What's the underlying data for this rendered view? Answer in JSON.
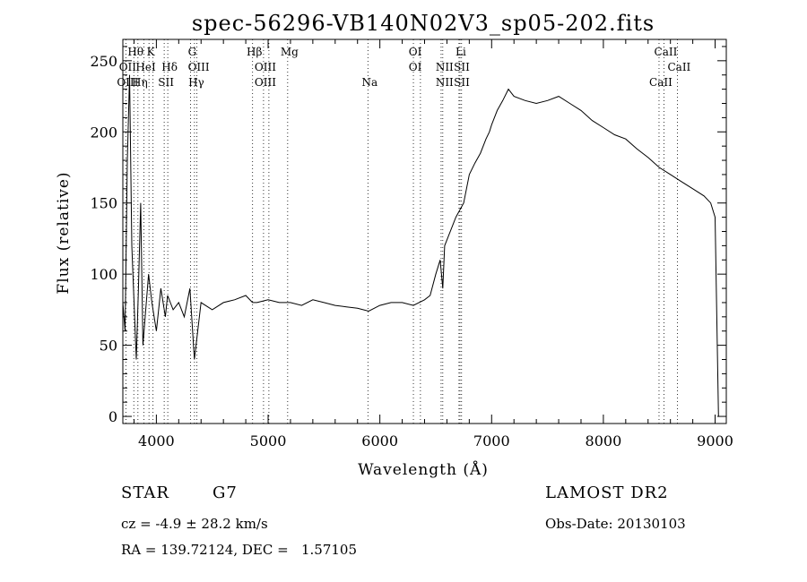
{
  "chart_data": {
    "type": "line",
    "title": "spec-56296-VB140N02V3_sp05-202.fits",
    "xlabel": "Wavelength (Å)",
    "ylabel": "Flux (relative)",
    "xlim": [
      3700,
      9100
    ],
    "ylim": [
      -5,
      265
    ],
    "xticks": [
      4000,
      5000,
      6000,
      7000,
      8000,
      9000
    ],
    "yticks": [
      0,
      50,
      100,
      150,
      200,
      250
    ],
    "grid": false,
    "series": [
      {
        "x": [
          3700,
          3720,
          3740,
          3760,
          3780,
          3800,
          3820,
          3840,
          3860,
          3880,
          3900,
          3930,
          3960,
          4000,
          4040,
          4080,
          4100,
          4150,
          4200,
          4250,
          4300,
          4340,
          4400,
          4500,
          4600,
          4700,
          4800,
          4860,
          4900,
          5000,
          5100,
          5200,
          5300,
          5400,
          5500,
          5600,
          5700,
          5800,
          5900,
          6000,
          6100,
          6200,
          6300,
          6400,
          6450,
          6500,
          6540,
          6563,
          6580,
          6620,
          6680,
          6750,
          6800,
          6850,
          6900,
          6950,
          6980,
          7000,
          7050,
          7100,
          7150,
          7200,
          7300,
          7400,
          7500,
          7600,
          7700,
          7800,
          7900,
          8000,
          8100,
          8200,
          8300,
          8400,
          8500,
          8600,
          8700,
          8800,
          8900,
          8960,
          9000,
          9030
        ],
        "y": [
          80,
          60,
          180,
          240,
          120,
          80,
          40,
          90,
          150,
          50,
          70,
          100,
          80,
          60,
          90,
          70,
          85,
          75,
          80,
          70,
          90,
          40,
          80,
          75,
          80,
          82,
          85,
          80,
          80,
          82,
          80,
          80,
          78,
          82,
          80,
          78,
          77,
          76,
          74,
          78,
          80,
          80,
          78,
          82,
          85,
          100,
          110,
          90,
          120,
          128,
          140,
          150,
          170,
          178,
          185,
          195,
          200,
          205,
          215,
          222,
          230,
          225,
          222,
          220,
          222,
          225,
          220,
          215,
          208,
          203,
          198,
          195,
          188,
          182,
          175,
          170,
          165,
          160,
          155,
          150,
          140,
          0
        ]
      }
    ],
    "lines": [
      {
        "label": "Hθ",
        "x": 3798,
        "row": 0
      },
      {
        "label": "OII",
        "x": 3727,
        "row": 1
      },
      {
        "label": "OIII",
        "x": 3727,
        "row": 2
      },
      {
        "label": "K",
        "x": 3934,
        "row": 0
      },
      {
        "label": "HeI",
        "x": 3889,
        "row": 1
      },
      {
        "label": "Hη",
        "x": 3835,
        "row": 2
      },
      {
        "label": "Hδ",
        "x": 4102,
        "row": 1
      },
      {
        "label": "SII",
        "x": 4070,
        "row": 2
      },
      {
        "label": "G",
        "x": 4305,
        "row": 0
      },
      {
        "label": "OIII",
        "x": 4363,
        "row": 1
      },
      {
        "label": "Hγ",
        "x": 4341,
        "row": 2
      },
      {
        "label": "Hβ",
        "x": 4861,
        "row": 0
      },
      {
        "label": "OIII",
        "x": 4959,
        "row": 1
      },
      {
        "label": "OIII",
        "x": 4959,
        "row": 2
      },
      {
        "label": "Mg",
        "x": 5175,
        "row": 0
      },
      {
        "label": "Na",
        "x": 5893,
        "row": 2
      },
      {
        "label": "OI",
        "x": 6300,
        "row": 0
      },
      {
        "label": "OI",
        "x": 6300,
        "row": 1
      },
      {
        "label": "Li",
        "x": 6708,
        "row": 0
      },
      {
        "label": "NII",
        "x": 6563,
        "row": 1
      },
      {
        "label": "SII",
        "x": 6717,
        "row": 1
      },
      {
        "label": "NII",
        "x": 6563,
        "row": 2
      },
      {
        "label": "SII",
        "x": 6717,
        "row": 2
      },
      {
        "label": "CaII",
        "x": 8542,
        "row": 0
      },
      {
        "label": "CaII",
        "x": 8662,
        "row": 1
      },
      {
        "label": "CaII",
        "x": 8498,
        "row": 2
      }
    ],
    "dotted_x": [
      3727,
      3798,
      3835,
      3889,
      3934,
      3970,
      4070,
      4102,
      4305,
      4341,
      4363,
      4861,
      4959,
      5007,
      5175,
      5893,
      6300,
      6363,
      6548,
      6563,
      6708,
      6717,
      6731,
      8498,
      8542,
      8662
    ]
  },
  "info": {
    "object_type": "STAR",
    "subclass": "G7",
    "survey": "LAMOST DR2",
    "cz": "cz = -4.9 ± 28.2 km/s",
    "obs_date": "Obs-Date: 20130103",
    "coords": "RA = 139.72124, DEC =   1.57105"
  }
}
